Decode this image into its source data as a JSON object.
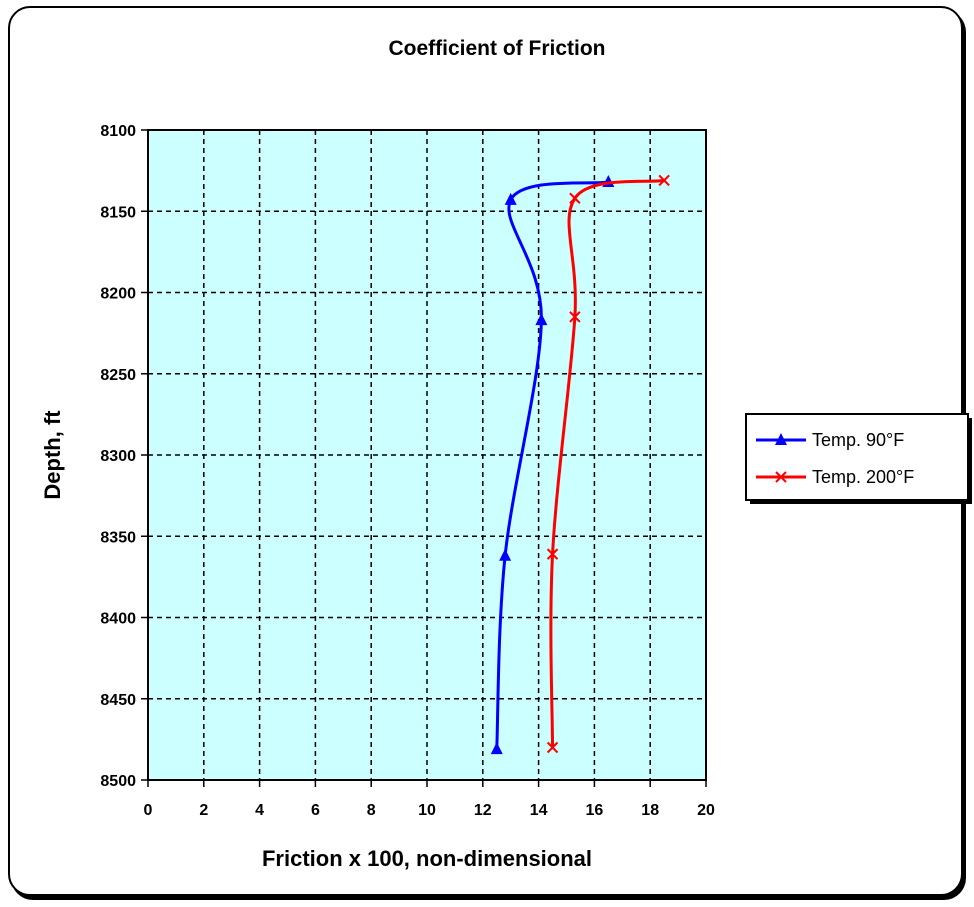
{
  "chart_data": {
    "type": "line",
    "title": "Coefficient of Friction",
    "xlabel": "Friction x 100, non-dimensional",
    "ylabel": "Depth, ft",
    "xlim": [
      0,
      20
    ],
    "ylim": [
      8100,
      8500
    ],
    "y_inverted": true,
    "x_ticks": [
      "0",
      "2",
      "4",
      "6",
      "8",
      "10",
      "12",
      "14",
      "16",
      "18",
      "20"
    ],
    "y_ticks": [
      "8100",
      "8150",
      "8200",
      "8250",
      "8300",
      "8350",
      "8400",
      "8450",
      "8500"
    ],
    "grid": true,
    "plot_background": "#ccffff",
    "legend_position": "right",
    "series": [
      {
        "name": "Temp. 90°F",
        "color": "#0000ff",
        "marker": "triangle",
        "points": [
          [
            16.5,
            8132
          ],
          [
            13.0,
            8143
          ],
          [
            14.1,
            8217
          ],
          [
            12.8,
            8362
          ],
          [
            12.5,
            8481
          ]
        ]
      },
      {
        "name": "Temp. 200°F",
        "color": "#ff0000",
        "marker": "x",
        "points": [
          [
            18.5,
            8131
          ],
          [
            15.3,
            8142
          ],
          [
            15.3,
            8215
          ],
          [
            14.5,
            8361
          ],
          [
            14.5,
            8480
          ]
        ]
      }
    ]
  }
}
